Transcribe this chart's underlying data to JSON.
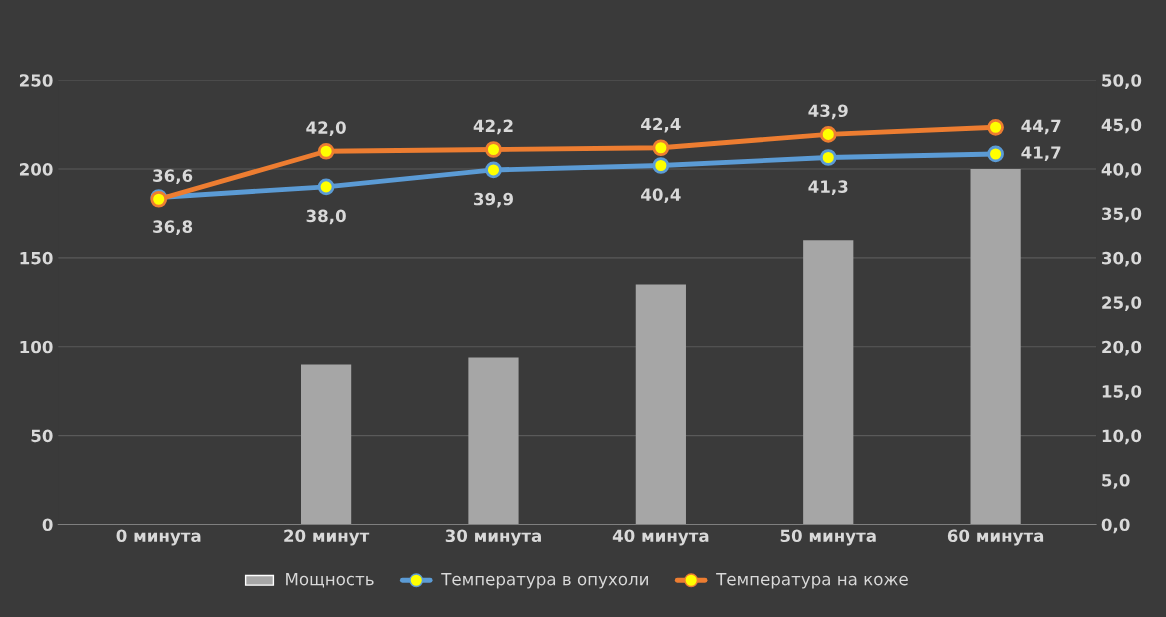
{
  "chart_data": {
    "type": "bar",
    "categories": [
      "0 минута",
      "20 минут",
      "30 минута",
      "40 минута",
      "50 минута",
      "60 минута"
    ],
    "series": [
      {
        "name": "Мощность",
        "color": "#a6a6a6",
        "values": [
          0,
          90,
          94,
          135,
          160,
          200
        ]
      },
      {
        "name": "Температура в опухоли",
        "type": "line",
        "axis": "y2",
        "color": "#5b9bd5",
        "values": [
          36.8,
          38.0,
          39.9,
          40.4,
          41.3,
          41.7
        ],
        "value_labels": [
          "36,8",
          "38,0",
          "39,9",
          "40,4",
          "41,3",
          "41,7"
        ]
      },
      {
        "name": "Температура на коже",
        "type": "line",
        "axis": "y2",
        "color": "#ed7d31",
        "values": [
          36.6,
          42.0,
          42.2,
          42.4,
          43.9,
          44.7
        ],
        "value_labels": [
          "36,6",
          "42,0",
          "42,2",
          "42,4",
          "43,9",
          "44,7"
        ]
      }
    ],
    "ylim": [
      0,
      250
    ],
    "yticks": [
      0,
      50,
      100,
      150,
      200,
      250
    ],
    "y2lim": [
      0,
      50
    ],
    "y2ticks": [
      {
        "value": 0,
        "label": "0,0"
      },
      {
        "value": 5,
        "label": "5,0"
      },
      {
        "value": 10,
        "label": "10,0"
      },
      {
        "value": 15,
        "label": "15,0"
      },
      {
        "value": 20,
        "label": "20,0"
      },
      {
        "value": 25,
        "label": "25,0"
      },
      {
        "value": 30,
        "label": "30,0"
      },
      {
        "value": 35,
        "label": "35,0"
      },
      {
        "value": 40,
        "label": "40,0"
      },
      {
        "value": 45,
        "label": "45,0"
      },
      {
        "value": 50,
        "label": "50,0"
      }
    ],
    "grid": "y",
    "legend": "bottom",
    "marker": "circle",
    "line_style": "solid"
  }
}
